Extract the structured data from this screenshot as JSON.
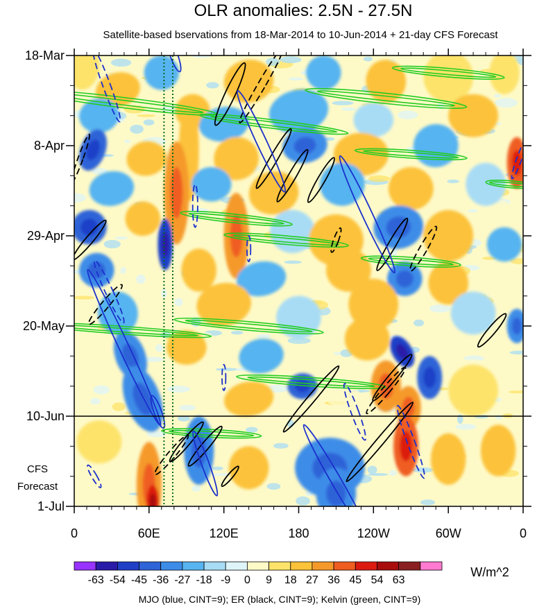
{
  "chart_data": {
    "type": "heatmap",
    "title": "OLR anomalies: 2.5N - 27.5N",
    "subtitle": "Satellite-based bservations from 18-Mar-2014 to 10-Jun-2014 + 21-day CFS Forecast",
    "x_ticks": [
      "0",
      "60E",
      "120E",
      "180",
      "120W",
      "60W",
      "0"
    ],
    "x_tick_values": [
      0,
      60,
      120,
      180,
      240,
      300,
      360
    ],
    "x_range": [
      0,
      360
    ],
    "y_ticks": [
      "18-Mar",
      "8-Apr",
      "29-Apr",
      "20-May",
      "10-Jun",
      "1-Jul"
    ],
    "y_tick_days": [
      0,
      21,
      42,
      63,
      84,
      105
    ],
    "y_range_days": [
      0,
      105
    ],
    "forecast_start_day": 84,
    "forecast_label": [
      "CFS",
      "Forecast"
    ],
    "reference_lines_lon": [
      72,
      79
    ],
    "colorbar": {
      "unit": "W/m^2",
      "levels": [
        "-63",
        "-54",
        "-45",
        "-36",
        "-27",
        "-18",
        "-9",
        "0",
        "9",
        "18",
        "27",
        "36",
        "45",
        "54",
        "63"
      ],
      "colors": [
        "#9933ff",
        "#2a1aa8",
        "#1f3fc7",
        "#2f63d8",
        "#3d8de8",
        "#57b4f0",
        "#a8dcf5",
        "#def4f8",
        "#fefac8",
        "#fde36a",
        "#fcc23a",
        "#f59a2a",
        "#ef5d20",
        "#dc1a10",
        "#a80c0c",
        "#8a2020",
        "#ff7ad0"
      ]
    },
    "footer": "MJO (blue, CINT=9); ER (black, CINT=9); Kelvin (green, CINT=9)",
    "series": [
      {
        "name": "MJO",
        "color": "#1a2fcc"
      },
      {
        "name": "ER",
        "color": "#000000"
      },
      {
        "name": "Kelvin",
        "color": "#22cc22"
      }
    ],
    "blobs": [
      {
        "lon": 8,
        "day": 3,
        "rx": 12,
        "ry": 5,
        "rot": 10,
        "v": 12
      },
      {
        "lon": 35,
        "day": 8,
        "rx": 18,
        "ry": 4,
        "rot": -15,
        "v": 22
      },
      {
        "lon": 70,
        "day": 4,
        "rx": 14,
        "ry": 4,
        "rot": 5,
        "v": -22
      },
      {
        "lon": 140,
        "day": 6,
        "rx": 20,
        "ry": 5,
        "rot": -10,
        "v": 18
      },
      {
        "lon": 200,
        "day": 4,
        "rx": 14,
        "ry": 4,
        "rot": 0,
        "v": -20
      },
      {
        "lon": 250,
        "day": 6,
        "rx": 16,
        "ry": 5,
        "rot": -10,
        "v": 20
      },
      {
        "lon": 300,
        "day": 5,
        "rx": 20,
        "ry": 6,
        "rot": 0,
        "v": 16
      },
      {
        "lon": 345,
        "day": 4,
        "rx": 12,
        "ry": 5,
        "rot": 0,
        "v": 14
      },
      {
        "lon": 20,
        "day": 14,
        "rx": 16,
        "ry": 4,
        "rot": -10,
        "v": -25
      },
      {
        "lon": 95,
        "day": 13,
        "rx": 14,
        "ry": 4,
        "rot": 5,
        "v": 20
      },
      {
        "lon": 120,
        "day": 16,
        "rx": 20,
        "ry": 4,
        "rot": -8,
        "v": -24
      },
      {
        "lon": 180,
        "day": 13,
        "rx": 24,
        "ry": 5,
        "rot": -12,
        "v": -20
      },
      {
        "lon": 240,
        "day": 15,
        "rx": 16,
        "ry": 4,
        "rot": 0,
        "v": -18
      },
      {
        "lon": 320,
        "day": 14,
        "rx": 20,
        "ry": 5,
        "rot": 0,
        "v": 18
      },
      {
        "lon": 15,
        "day": 22,
        "rx": 10,
        "ry": 5,
        "rot": 20,
        "v": -40
      },
      {
        "lon": 58,
        "day": 24,
        "rx": 16,
        "ry": 4,
        "rot": -10,
        "v": 22
      },
      {
        "lon": 92,
        "day": 22,
        "rx": 8,
        "ry": 12,
        "rot": 0,
        "v": 24
      },
      {
        "lon": 130,
        "day": 24,
        "rx": 18,
        "ry": 5,
        "rot": -12,
        "v": 18
      },
      {
        "lon": 185,
        "day": 21,
        "rx": 18,
        "ry": 4,
        "rot": -10,
        "v": -30
      },
      {
        "lon": 230,
        "day": 23,
        "rx": 22,
        "ry": 5,
        "rot": 0,
        "v": 22
      },
      {
        "lon": 290,
        "day": 21,
        "rx": 18,
        "ry": 5,
        "rot": -10,
        "v": -24
      },
      {
        "lon": 355,
        "day": 25,
        "rx": 8,
        "ry": 6,
        "rot": 0,
        "v": 36
      },
      {
        "lon": 30,
        "day": 31,
        "rx": 18,
        "ry": 4,
        "rot": -10,
        "v": -26
      },
      {
        "lon": 82,
        "day": 32,
        "rx": 10,
        "ry": 12,
        "rot": 0,
        "v": 30
      },
      {
        "lon": 110,
        "day": 30,
        "rx": 16,
        "ry": 4,
        "rot": 0,
        "v": -20
      },
      {
        "lon": 160,
        "day": 32,
        "rx": 20,
        "ry": 5,
        "rot": -10,
        "v": 22
      },
      {
        "lon": 215,
        "day": 30,
        "rx": 18,
        "ry": 5,
        "rot": -10,
        "v": -22
      },
      {
        "lon": 270,
        "day": 31,
        "rx": 18,
        "ry": 5,
        "rot": 0,
        "v": 20
      },
      {
        "lon": 330,
        "day": 30,
        "rx": 16,
        "ry": 5,
        "rot": 0,
        "v": -18
      },
      {
        "lon": 12,
        "day": 40,
        "rx": 14,
        "ry": 4,
        "rot": -20,
        "v": -40
      },
      {
        "lon": 55,
        "day": 38,
        "rx": 14,
        "ry": 4,
        "rot": -10,
        "v": 20
      },
      {
        "lon": 73,
        "day": 44,
        "rx": 6,
        "ry": 6,
        "rot": 0,
        "v": -50
      },
      {
        "lon": 130,
        "day": 42,
        "rx": 10,
        "ry": 10,
        "rot": 0,
        "v": 28
      },
      {
        "lon": 175,
        "day": 41,
        "rx": 18,
        "ry": 5,
        "rot": 0,
        "v": -18
      },
      {
        "lon": 210,
        "day": 43,
        "rx": 22,
        "ry": 6,
        "rot": 0,
        "v": 22
      },
      {
        "lon": 260,
        "day": 40,
        "rx": 20,
        "ry": 5,
        "rot": -10,
        "v": -34
      },
      {
        "lon": 300,
        "day": 42,
        "rx": 20,
        "ry": 6,
        "rot": 0,
        "v": 20
      },
      {
        "lon": 345,
        "day": 44,
        "rx": 14,
        "ry": 4,
        "rot": 0,
        "v": -20
      },
      {
        "lon": 18,
        "day": 50,
        "rx": 14,
        "ry": 4,
        "rot": -10,
        "v": -32
      },
      {
        "lon": 100,
        "day": 50,
        "rx": 14,
        "ry": 5,
        "rot": 0,
        "v": 24
      },
      {
        "lon": 150,
        "day": 52,
        "rx": 20,
        "ry": 4,
        "rot": -10,
        "v": -20
      },
      {
        "lon": 220,
        "day": 50,
        "rx": 18,
        "ry": 5,
        "rot": 0,
        "v": 24
      },
      {
        "lon": 265,
        "day": 52,
        "rx": 14,
        "ry": 4,
        "rot": -10,
        "v": -30
      },
      {
        "lon": 300,
        "day": 53,
        "rx": 16,
        "ry": 5,
        "rot": 0,
        "v": 18
      },
      {
        "lon": 35,
        "day": 60,
        "rx": 16,
        "ry": 5,
        "rot": -10,
        "v": -24
      },
      {
        "lon": 120,
        "day": 58,
        "rx": 22,
        "ry": 5,
        "rot": -10,
        "v": 20
      },
      {
        "lon": 180,
        "day": 61,
        "rx": 18,
        "ry": 5,
        "rot": -10,
        "v": -18
      },
      {
        "lon": 240,
        "day": 58,
        "rx": 20,
        "ry": 6,
        "rot": 0,
        "v": 20
      },
      {
        "lon": 320,
        "day": 60,
        "rx": 18,
        "ry": 5,
        "rot": 0,
        "v": -16
      },
      {
        "lon": 355,
        "day": 63,
        "rx": 8,
        "ry": 4,
        "rot": 0,
        "v": -30
      },
      {
        "lon": 45,
        "day": 70,
        "rx": 12,
        "ry": 6,
        "rot": -20,
        "v": -30
      },
      {
        "lon": 90,
        "day": 68,
        "rx": 16,
        "ry": 4,
        "rot": 0,
        "v": 20
      },
      {
        "lon": 150,
        "day": 70,
        "rx": 18,
        "ry": 4,
        "rot": -10,
        "v": -20
      },
      {
        "lon": 263,
        "day": 69,
        "rx": 8,
        "ry": 4,
        "rot": -30,
        "v": -54
      },
      {
        "lon": 285,
        "day": 75,
        "rx": 10,
        "ry": 5,
        "rot": 0,
        "v": -40
      },
      {
        "lon": 235,
        "day": 66,
        "rx": 18,
        "ry": 5,
        "rot": 0,
        "v": 20
      },
      {
        "lon": 55,
        "day": 80,
        "rx": 14,
        "ry": 8,
        "rot": -20,
        "v": -34
      },
      {
        "lon": 140,
        "day": 80,
        "rx": 20,
        "ry": 4,
        "rot": -10,
        "v": 18
      },
      {
        "lon": 183,
        "day": 77,
        "rx": 12,
        "ry": 3,
        "rot": -5,
        "v": -40
      },
      {
        "lon": 250,
        "day": 77,
        "rx": 12,
        "ry": 6,
        "rot": 0,
        "v": 30
      },
      {
        "lon": 268,
        "day": 82,
        "rx": 10,
        "ry": 5,
        "rot": 0,
        "v": 34
      },
      {
        "lon": 320,
        "day": 78,
        "rx": 20,
        "ry": 6,
        "rot": 0,
        "v": 14
      },
      {
        "lon": 20,
        "day": 90,
        "rx": 18,
        "ry": 5,
        "rot": 0,
        "v": 14
      },
      {
        "lon": 60,
        "day": 100,
        "rx": 10,
        "ry": 10,
        "rot": 0,
        "v": 30
      },
      {
        "lon": 63,
        "day": 104,
        "rx": 5,
        "ry": 4,
        "rot": 0,
        "v": 50
      },
      {
        "lon": 100,
        "day": 92,
        "rx": 12,
        "ry": 8,
        "rot": 0,
        "v": -28
      },
      {
        "lon": 140,
        "day": 96,
        "rx": 16,
        "ry": 5,
        "rot": 0,
        "v": 20
      },
      {
        "lon": 205,
        "day": 96,
        "rx": 28,
        "ry": 7,
        "rot": 0,
        "v": -34
      },
      {
        "lon": 210,
        "day": 102,
        "rx": 16,
        "ry": 6,
        "rot": 0,
        "v": -28
      },
      {
        "lon": 266,
        "day": 91,
        "rx": 10,
        "ry": 7,
        "rot": 0,
        "v": 40
      },
      {
        "lon": 300,
        "day": 94,
        "rx": 14,
        "ry": 6,
        "rot": 0,
        "v": 18
      },
      {
        "lon": 340,
        "day": 92,
        "rx": 14,
        "ry": 6,
        "rot": 0,
        "v": 20
      }
    ],
    "contours": {
      "kelvin": [
        {
          "lon": 40,
          "day": 11,
          "rx": 75,
          "ry": 1.2,
          "rot": 7
        },
        {
          "lon": 250,
          "day": 10,
          "rx": 65,
          "ry": 1.2,
          "rot": 6
        },
        {
          "lon": 300,
          "day": 4,
          "rx": 45,
          "ry": 1.0,
          "rot": 5
        },
        {
          "lon": 160,
          "day": 16,
          "rx": 60,
          "ry": 1.0,
          "rot": 7
        },
        {
          "lon": 270,
          "day": 23,
          "rx": 45,
          "ry": 0.9,
          "rot": 4
        },
        {
          "lon": 130,
          "day": 38,
          "rx": 45,
          "ry": 1.0,
          "rot": 6
        },
        {
          "lon": 170,
          "day": 43,
          "rx": 50,
          "ry": 1.0,
          "rot": 5
        },
        {
          "lon": 270,
          "day": 48,
          "rx": 40,
          "ry": 1.0,
          "rot": 4
        },
        {
          "lon": 140,
          "day": 63,
          "rx": 60,
          "ry": 1.0,
          "rot": 5
        },
        {
          "lon": 40,
          "day": 64,
          "rx": 70,
          "ry": 0.9,
          "rot": 4
        },
        {
          "lon": 190,
          "day": 76,
          "rx": 60,
          "ry": 1.0,
          "rot": 4
        },
        {
          "lon": 110,
          "day": 88,
          "rx": 40,
          "ry": 0.9,
          "rot": 3
        },
        {
          "lon": 350,
          "day": 30,
          "rx": 20,
          "ry": 0.8,
          "rot": 5
        }
      ],
      "er": [
        {
          "lon": 125,
          "day": 9,
          "rx": 4,
          "ry": 8,
          "rot": 25,
          "dashed": false
        },
        {
          "lon": 150,
          "day": 7,
          "rx": 3,
          "ry": 10,
          "rot": 30,
          "dashed": true
        },
        {
          "lon": 175,
          "day": 28,
          "rx": 3,
          "ry": 7,
          "rot": 30,
          "dashed": false
        },
        {
          "lon": 160,
          "day": 24,
          "rx": 3,
          "ry": 8,
          "rot": 30,
          "dashed": false
        },
        {
          "lon": 255,
          "day": 44,
          "rx": 3,
          "ry": 7,
          "rot": 30,
          "dashed": false
        },
        {
          "lon": 280,
          "day": 45,
          "rx": 3,
          "ry": 6,
          "rot": 30,
          "dashed": true
        },
        {
          "lon": 335,
          "day": 64,
          "rx": 3,
          "ry": 5,
          "rot": 40,
          "dashed": false
        },
        {
          "lon": 190,
          "day": 80,
          "rx": 3,
          "ry": 10,
          "rot": 40,
          "dashed": false
        },
        {
          "lon": 255,
          "day": 75,
          "rx": 3,
          "ry": 7,
          "rot": 40,
          "dashed": false
        },
        {
          "lon": 245,
          "day": 90,
          "rx": 3,
          "ry": 12,
          "rot": 40,
          "dashed": false
        },
        {
          "lon": 250,
          "day": 78,
          "rx": 3,
          "ry": 7,
          "rot": 40,
          "dashed": true
        },
        {
          "lon": 105,
          "day": 91,
          "rx": 3,
          "ry": 6,
          "rot": 40,
          "dashed": false
        },
        {
          "lon": 90,
          "day": 90,
          "rx": 3,
          "ry": 6,
          "rot": 40,
          "dashed": false
        },
        {
          "lon": 78,
          "day": 93,
          "rx": 3,
          "ry": 6,
          "rot": 40,
          "dashed": true
        },
        {
          "lon": 125,
          "day": 98,
          "rx": 2,
          "ry": 3,
          "rot": 40,
          "dashed": false
        },
        {
          "lon": 12,
          "day": 43,
          "rx": 3,
          "ry": 6,
          "rot": 40,
          "dashed": false
        },
        {
          "lon": 25,
          "day": 58,
          "rx": 3,
          "ry": 6,
          "rot": 40,
          "dashed": true
        },
        {
          "lon": 5,
          "day": 24,
          "rx": 2,
          "ry": 6,
          "rot": 20,
          "dashed": true
        },
        {
          "lon": 210,
          "day": 43,
          "rx": 2,
          "ry": 3,
          "rot": 20,
          "dashed": true
        },
        {
          "lon": 198,
          "day": 29,
          "rx": 3,
          "ry": 6,
          "rot": 30,
          "dashed": false
        }
      ],
      "mjo": [
        {
          "lon": 26,
          "day": 7,
          "rx": 3,
          "ry": 9,
          "rot": -20,
          "dashed": true
        },
        {
          "lon": 150,
          "day": 20,
          "rx": 4,
          "ry": 13,
          "rot": -25,
          "dashed": false
        },
        {
          "lon": 235,
          "day": 37,
          "rx": 4,
          "ry": 15,
          "rot": -25,
          "dashed": false
        },
        {
          "lon": 40,
          "day": 68,
          "rx": 4,
          "ry": 20,
          "rot": -25,
          "dashed": false
        },
        {
          "lon": 105,
          "day": 95,
          "rx": 3,
          "ry": 8,
          "rot": -20,
          "dashed": false
        },
        {
          "lon": 210,
          "day": 99,
          "rx": 4,
          "ry": 15,
          "rot": -30,
          "dashed": false
        },
        {
          "lon": 28,
          "day": 55,
          "rx": 3,
          "ry": 8,
          "rot": -25,
          "dashed": true
        },
        {
          "lon": 225,
          "day": 83,
          "rx": 3,
          "ry": 7,
          "rot": -20,
          "dashed": true
        },
        {
          "lon": 270,
          "day": 90,
          "rx": 3,
          "ry": 9,
          "rot": -20,
          "dashed": true
        },
        {
          "lon": 16,
          "day": 98,
          "rx": 2,
          "ry": 3,
          "rot": -30,
          "dashed": true
        },
        {
          "lon": 67,
          "day": 83,
          "rx": 3,
          "ry": 4,
          "rot": -20,
          "dashed": false
        },
        {
          "lon": 97,
          "day": 35,
          "rx": 2,
          "ry": 5,
          "rot": 0,
          "dashed": true
        },
        {
          "lon": 140,
          "day": 45,
          "rx": 1.5,
          "ry": 3,
          "rot": 0,
          "dashed": true
        },
        {
          "lon": 120,
          "day": 75,
          "rx": 1.5,
          "ry": 3,
          "rot": 0,
          "dashed": true
        },
        {
          "lon": 357,
          "day": 24,
          "rx": 2,
          "ry": 5,
          "rot": 20,
          "dashed": true
        },
        {
          "lon": 80,
          "day": 0,
          "rx": 3,
          "ry": 4,
          "rot": -20,
          "dashed": false
        }
      ]
    }
  }
}
